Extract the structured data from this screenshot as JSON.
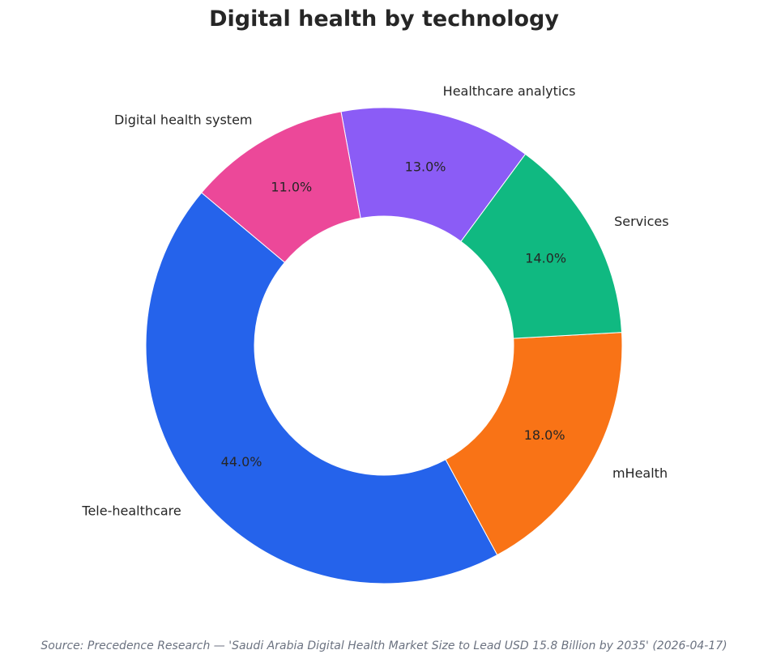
{
  "chart_data": {
    "type": "pie",
    "style": "donut",
    "title": "Digital health by technology",
    "categories": [
      "Tele-healthcare",
      "mHealth",
      "Services",
      "Healthcare analytics",
      "Digital health system"
    ],
    "values": [
      44.0,
      18.0,
      14.0,
      13.0,
      11.0
    ],
    "value_labels": [
      "44.0%",
      "18.0%",
      "14.0%",
      "13.0%",
      "11.0%"
    ],
    "colors": [
      "#2563eb",
      "#f97316",
      "#10b981",
      "#8b5cf6",
      "#ec4899"
    ],
    "start_angle_deg": 140,
    "direction": "counterclockwise",
    "legend": "none"
  },
  "source_note": "Source: Precedence Research — 'Saudi Arabia Digital Health Market Size to Lead USD 15.8 Billion by 2035' (2026-04-17)"
}
